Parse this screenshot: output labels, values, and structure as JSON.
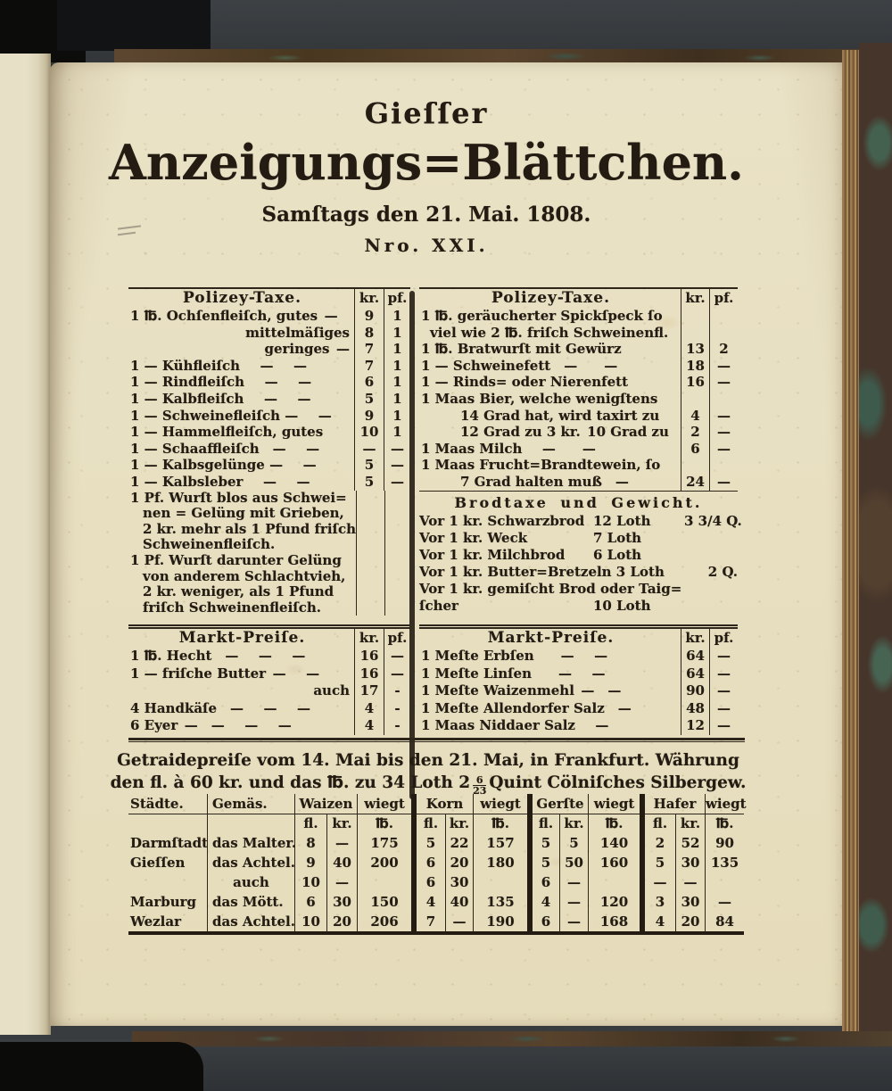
{
  "palette": {
    "paper": "#e8e0c1",
    "ink": "#241c12",
    "backdrop": "#383c3f",
    "cover_brown": "#46352a",
    "cover_teal": "#44604f"
  },
  "masthead": {
    "place": "Gieſſer",
    "title": "Anzeigungs=Blättchen.",
    "dateline": "Samſtags den 21. Mai. 1808.",
    "issue_no": "Nro. XXI."
  },
  "col_headers": {
    "kr": "kr.",
    "pf": "pf."
  },
  "polizey_left": {
    "title": "Polizey-Taxe.",
    "rows": [
      {
        "desc": "1 ℔. Ochſenfleiſch, gutes —",
        "kr": "9",
        "pf": "1",
        "cls": ""
      },
      {
        "desc": "mittelmäſiges",
        "kr": "8",
        "pf": "1",
        "cls": "alignr"
      },
      {
        "desc": "geringes —",
        "kr": "7",
        "pf": "1",
        "cls": "alignr"
      },
      {
        "desc": "1 — Kühfleiſch  —  —",
        "kr": "7",
        "pf": "1",
        "cls": ""
      },
      {
        "desc": "1 — Rindfleiſch  —  —",
        "kr": "6",
        "pf": "1",
        "cls": ""
      },
      {
        "desc": "1 — Kalbfleiſch  —  —",
        "kr": "5",
        "pf": "1",
        "cls": ""
      },
      {
        "desc": "1 — Schweinefleiſch —  —",
        "kr": "9",
        "pf": "1",
        "cls": ""
      },
      {
        "desc": "1 — Hammelfleiſch, gutes",
        "kr": "10",
        "pf": "1",
        "cls": ""
      },
      {
        "desc": "1 — Schaaffleiſch —  —",
        "kr": "—",
        "pf": "—",
        "cls": ""
      },
      {
        "desc": "1 — Kalbsgelünge —  —",
        "kr": "5",
        "pf": "—",
        "cls": ""
      },
      {
        "desc": "1 — Kalbsleber  —  —",
        "kr": "5",
        "pf": "—",
        "cls": ""
      }
    ],
    "paragraph_lines": [
      {
        "text": "1 Pf. Wurſt blos aus Schwei=",
        "cls": ""
      },
      {
        "text": "nen = Gelüng mit Grieben,",
        "cls": "cont"
      },
      {
        "text": "2 kr. mehr als 1 Pfund friſch",
        "cls": "cont"
      },
      {
        "text": "Schweinenfleiſch.",
        "cls": "cont"
      },
      {
        "text": "1 Pf. Wurſt darunter Gelüng",
        "cls": ""
      },
      {
        "text": "von anderem Schlachtvieh,",
        "cls": "cont"
      },
      {
        "text": "2 kr. weniger, als 1 Pfund",
        "cls": "cont"
      },
      {
        "text": "friſch Schweinenfleiſch.",
        "cls": "cont"
      }
    ]
  },
  "polizey_right": {
    "title": "Polizey-Taxe.",
    "rows": [
      {
        "desc": "1 ℔. geräucherter Spickſpeck ſo",
        "kr": "",
        "pf": "",
        "cls": ""
      },
      {
        "desc": "viel wie 2 ℔. friſch Schweinenfl.",
        "kr": "",
        "pf": "",
        "cls": "ind1"
      },
      {
        "desc": "1 ℔. Bratwurſt mit Gewürz",
        "kr": "13",
        "pf": "2",
        "cls": ""
      },
      {
        "desc": "1 — Schweinefett —  —",
        "kr": "18",
        "pf": "—",
        "cls": ""
      },
      {
        "desc": "1 — Rinds= oder Nierenfett",
        "kr": "16",
        "pf": "—",
        "cls": ""
      },
      {
        "desc": "1 Maas Bier, welche wenigſtens",
        "kr": "",
        "pf": "",
        "cls": ""
      },
      {
        "desc": "14 Grad hat, wird taxirt zu",
        "kr": "4",
        "pf": "—",
        "cls": "ind2"
      },
      {
        "desc": "12 Grad zu 3 kr. 10 Grad zu",
        "kr": "2",
        "pf": "—",
        "cls": "ind2"
      },
      {
        "desc": "1 Maas Milch  —  —",
        "kr": "6",
        "pf": "—",
        "cls": ""
      },
      {
        "desc": "1 Maas Frucht=Brandtewein, ſo",
        "kr": "",
        "pf": "",
        "cls": ""
      },
      {
        "desc": "7 Grad halten muß —",
        "kr": "24",
        "pf": "—",
        "cls": "ind2"
      }
    ]
  },
  "brodtaxe": {
    "title": "Brodtaxe und Gewicht.",
    "rows": [
      {
        "label": "Vor 1 kr. Schwarzbrod",
        "amount": "12 Loth",
        "extra": "3 3/4 Q.",
        "cls": ""
      },
      {
        "label": "Vor 1 kr. Weck",
        "amount": "7 Loth",
        "extra": "",
        "cls": ""
      },
      {
        "label": "Vor 1 kr. Milchbrod",
        "amount": "6 Loth",
        "extra": "",
        "cls": ""
      },
      {
        "label": "Vor 1 kr. Butter=Bretzeln 3 Loth",
        "amount": "",
        "extra": "2 Q.",
        "cls": ""
      },
      {
        "label": "Vor 1 kr. gemiſcht Brod oder Taig=",
        "amount": "",
        "extra": "",
        "cls": ""
      },
      {
        "label": "ſcher",
        "amount": "10 Loth",
        "extra": "",
        "cls": "cont2"
      }
    ]
  },
  "markt_left": {
    "title": "Markt-Preiſe.",
    "rows": [
      {
        "desc": "1 ℔. Hecht —  —  —",
        "kr": "16",
        "pf": "—",
        "cls": ""
      },
      {
        "desc": "1 — friſche Butter —  —",
        "kr": "16",
        "pf": "—",
        "cls": ""
      },
      {
        "desc": "auch",
        "kr": "17",
        "pf": "-",
        "cls": "alignr"
      },
      {
        "desc": "4 Handkäſe —  —  —",
        "kr": "4",
        "pf": "-",
        "cls": ""
      },
      {
        "desc": "6 Eyer — —  —  —",
        "kr": "4",
        "pf": "-",
        "cls": ""
      }
    ]
  },
  "markt_right": {
    "title": "Markt-Preiſe.",
    "rows": [
      {
        "desc": "1 Meſte Erbſen  —  —",
        "kr": "64",
        "pf": "—",
        "cls": ""
      },
      {
        "desc": "1 Meſte Linſen  —  —",
        "kr": "64",
        "pf": "—",
        "cls": ""
      },
      {
        "desc": "1 Meſte Waizenmehl — —",
        "kr": "90",
        "pf": "—",
        "cls": ""
      },
      {
        "desc": "1 Meſte Allendorfer Salz —",
        "kr": "48",
        "pf": "—",
        "cls": ""
      },
      {
        "desc": "1 Maas Niddaer Salz  —",
        "kr": "12",
        "pf": "—",
        "cls": ""
      }
    ]
  },
  "getraide": {
    "line1": "Getraidepreiſe vom 14. Mai bis den 21. Mai, in Frankfurt. Währung",
    "line2_pre": "den fl. à 60 kr. und das ℔. zu 34 Loth 2",
    "frac_num": "6",
    "frac_den": "23",
    "line2_post": "Quint Cölniſches Silbergew."
  },
  "grain_table": {
    "h_staedte": "Städte.",
    "h_gemaes": "Gemäs.",
    "h_waizen": "Waizen",
    "h_korn": "Korn",
    "h_gerste": "Gerſte",
    "h_hafer": "Hafer",
    "h_wiegt": "wiegt",
    "h_fl": "fl.",
    "h_kr": "kr.",
    "h_lb": "℔.",
    "rows": [
      {
        "city": "Darmſtadt",
        "measure": "das Malter.",
        "cls": "",
        "w_fl": "8",
        "w_kr": "—",
        "w_lb": "175",
        "k_fl": "5",
        "k_kr": "22",
        "k_lb": "157",
        "g_fl": "5",
        "g_kr": "5",
        "g_lb": "140",
        "h_fl": "2",
        "h_kr": "52",
        "h_lb": "90"
      },
      {
        "city": "Gieſſen",
        "measure": "das Achtel.",
        "cls": "",
        "w_fl": "9",
        "w_kr": "40",
        "w_lb": "200",
        "k_fl": "6",
        "k_kr": "20",
        "k_lb": "180",
        "g_fl": "5",
        "g_kr": "50",
        "g_lb": "160",
        "h_fl": "5",
        "h_kr": "30",
        "h_lb": "135"
      },
      {
        "city": "",
        "measure": "auch",
        "cls": "alignc",
        "w_fl": "10",
        "w_kr": "—",
        "w_lb": "",
        "k_fl": "6",
        "k_kr": "30",
        "k_lb": "",
        "g_fl": "6",
        "g_kr": "—",
        "g_lb": "",
        "h_fl": "—",
        "h_kr": "—",
        "h_lb": ""
      },
      {
        "city": "Marburg",
        "measure": "das Mött.",
        "cls": "",
        "w_fl": "6",
        "w_kr": "30",
        "w_lb": "150",
        "k_fl": "4",
        "k_kr": "40",
        "k_lb": "135",
        "g_fl": "4",
        "g_kr": "—",
        "g_lb": "120",
        "h_fl": "3",
        "h_kr": "30",
        "h_lb": "—"
      },
      {
        "city": "Wezlar",
        "measure": "das Achtel.",
        "cls": "",
        "w_fl": "10",
        "w_kr": "20",
        "w_lb": "206",
        "k_fl": "7",
        "k_kr": "—",
        "k_lb": "190",
        "g_fl": "6",
        "g_kr": "—",
        "g_lb": "168",
        "h_fl": "4",
        "h_kr": "20",
        "h_lb": "84"
      }
    ]
  }
}
